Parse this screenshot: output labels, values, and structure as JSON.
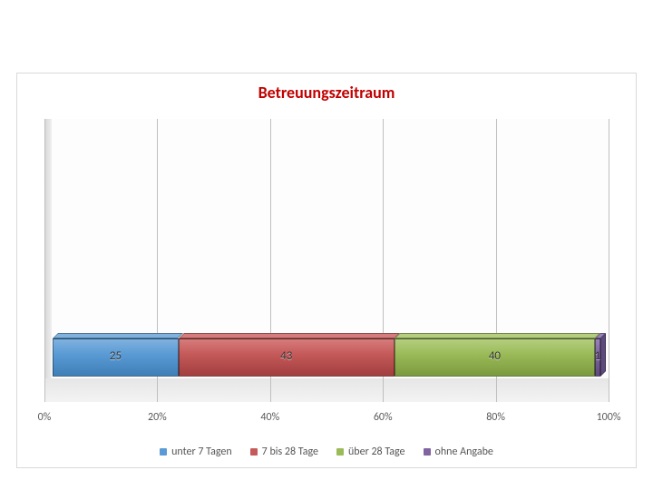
{
  "chart": {
    "type": "stacked-bar-100",
    "title": "Betreuungszeitraum",
    "title_color": "#c00000",
    "title_fontsize": 18,
    "frame_border_color": "#d9d9d9",
    "background_color": "#ffffff",
    "grid_color": "#bfbfbf",
    "axis_label_color": "#595959",
    "axis_label_fontsize": 12,
    "data_label_fontsize": 13,
    "legend_fontsize": 12,
    "xlim": [
      0,
      100
    ],
    "xtick_step": 20,
    "xticks": [
      "0%",
      "20%",
      "40%",
      "60%",
      "80%",
      "100%"
    ],
    "series": [
      {
        "name": "unter 7 Tagen",
        "value": 25,
        "label": "25",
        "color": "#5b9bd5",
        "color_top": "#7fb2df",
        "color_side": "#3f7fb8"
      },
      {
        "name": "7 bis 28 Tage",
        "value": 43,
        "label": "43",
        "color": "#c55a5a",
        "color_top": "#d67c7c",
        "color_side": "#a23e3e"
      },
      {
        "name": "über 28 Tage",
        "value": 40,
        "label": "40",
        "color": "#9bbb59",
        "color_top": "#b4ce7e",
        "color_side": "#7a9a3e"
      },
      {
        "name": "ohne Angabe",
        "value": 1,
        "label": "1",
        "color": "#8064a2",
        "color_top": "#9a83b8",
        "color_side": "#5f4a7d"
      }
    ],
    "legend": [
      {
        "label": "unter 7 Tagen",
        "color": "#5b9bd5"
      },
      {
        "label": "7 bis 28 Tage",
        "color": "#c55a5a"
      },
      {
        "label": "über 28 Tage",
        "color": "#9bbb59"
      },
      {
        "label": "ohne Angabe",
        "color": "#8064a2"
      }
    ]
  }
}
